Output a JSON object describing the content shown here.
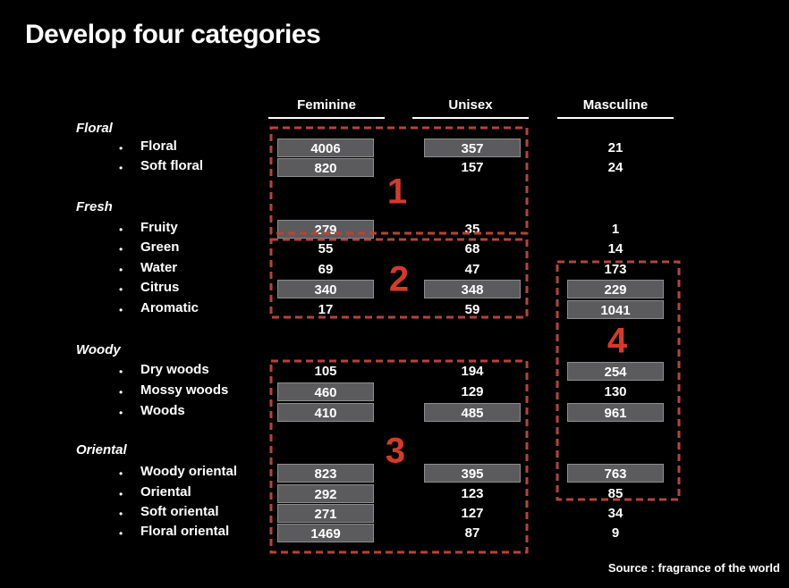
{
  "slide": {
    "title": "Develop four categories",
    "source": "Source : fragrance of the world",
    "bullet_char": "•"
  },
  "columns": [
    {
      "label": "Feminine"
    },
    {
      "label": "Unisex"
    },
    {
      "label": "Masculine"
    }
  ],
  "sections": [
    {
      "heading": "Floral",
      "rows": [
        {
          "label": "Floral",
          "values": [
            {
              "v": "4006",
              "box": true
            },
            {
              "v": "357",
              "box": true
            },
            {
              "v": "21",
              "box": false
            }
          ]
        },
        {
          "label": "Soft floral",
          "values": [
            {
              "v": "820",
              "box": true
            },
            {
              "v": "157",
              "box": false
            },
            {
              "v": "24",
              "box": false
            }
          ]
        }
      ]
    },
    {
      "heading": "Fresh",
      "rows": [
        {
          "label": "Fruity",
          "values": [
            {
              "v": "279",
              "box": true
            },
            {
              "v": "35",
              "box": false
            },
            {
              "v": "1",
              "box": false
            }
          ]
        },
        {
          "label": "Green",
          "values": [
            {
              "v": "55",
              "box": false
            },
            {
              "v": "68",
              "box": false
            },
            {
              "v": "14",
              "box": false
            }
          ]
        },
        {
          "label": "Water",
          "values": [
            {
              "v": "69",
              "box": false
            },
            {
              "v": "47",
              "box": false
            },
            {
              "v": "173",
              "box": false
            }
          ]
        },
        {
          "label": "Citrus",
          "values": [
            {
              "v": "340",
              "box": true
            },
            {
              "v": "348",
              "box": true
            },
            {
              "v": "229",
              "box": true
            }
          ]
        },
        {
          "label": "Aromatic",
          "values": [
            {
              "v": "17",
              "box": false
            },
            {
              "v": "59",
              "box": false
            },
            {
              "v": "1041",
              "box": true
            }
          ]
        }
      ]
    },
    {
      "heading": "Woody",
      "rows": [
        {
          "label": "Dry woods",
          "values": [
            {
              "v": "105",
              "box": false
            },
            {
              "v": "194",
              "box": false
            },
            {
              "v": "254",
              "box": true
            }
          ]
        },
        {
          "label": "Mossy woods",
          "values": [
            {
              "v": "460",
              "box": true
            },
            {
              "v": "129",
              "box": false
            },
            {
              "v": "130",
              "box": false
            }
          ]
        },
        {
          "label": "Woods",
          "values": [
            {
              "v": "410",
              "box": true
            },
            {
              "v": "485",
              "box": true
            },
            {
              "v": "961",
              "box": true
            }
          ]
        }
      ]
    },
    {
      "heading": "Oriental",
      "rows": [
        {
          "label": "Woody oriental",
          "values": [
            {
              "v": "823",
              "box": true
            },
            {
              "v": "395",
              "box": true
            },
            {
              "v": "763",
              "box": true
            }
          ]
        },
        {
          "label": "Oriental",
          "values": [
            {
              "v": "292",
              "box": true
            },
            {
              "v": "123",
              "box": false
            },
            {
              "v": "85",
              "box": false
            }
          ]
        },
        {
          "label": "Soft oriental",
          "values": [
            {
              "v": "271",
              "box": true
            },
            {
              "v": "127",
              "box": false
            },
            {
              "v": "34",
              "box": false
            }
          ]
        },
        {
          "label": "Floral oriental",
          "values": [
            {
              "v": "1469",
              "box": true
            },
            {
              "v": "87",
              "box": false
            },
            {
              "v": "9",
              "box": false
            }
          ]
        }
      ]
    }
  ],
  "groups": [
    {
      "number": "1"
    },
    {
      "number": "2"
    },
    {
      "number": "3"
    },
    {
      "number": "4"
    }
  ],
  "colors": {
    "number_red": "#d23b2c",
    "dash_red": "#b5443a",
    "box_gray": "#5b5b5d",
    "box_border": "#8e8e90"
  }
}
